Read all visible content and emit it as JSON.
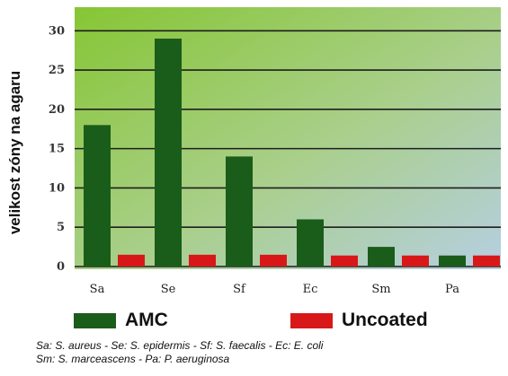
{
  "chart_data": {
    "type": "bar",
    "title": "",
    "xlabel": "",
    "ylabel": "velikost zóny na agaru",
    "categories": [
      "Sa",
      "Se",
      "Sf",
      "Ec",
      "Sm",
      "Pa"
    ],
    "series": [
      {
        "name": "AMC",
        "color": "#1a5c1a",
        "values": [
          18,
          29,
          14,
          6,
          2.5,
          1.4
        ]
      },
      {
        "name": "Uncoated",
        "color": "#d81818",
        "values": [
          1.5,
          1.5,
          1.5,
          1.4,
          1.4,
          1.4
        ]
      }
    ],
    "ylim": [
      0,
      33
    ],
    "yticks": [
      0,
      5,
      10,
      15,
      20,
      25,
      30
    ],
    "grid": true,
    "legend_position": "bottom",
    "background_gradient": [
      "#8fcc3a",
      "#b3cfe0"
    ]
  },
  "caption": {
    "line1": "Sa: S. aureus - Se: S. epidermis - Sf: S. faecalis - Ec: E. coli",
    "line2": "Sm: S. marceascens - Pa: P. aeruginosa"
  }
}
